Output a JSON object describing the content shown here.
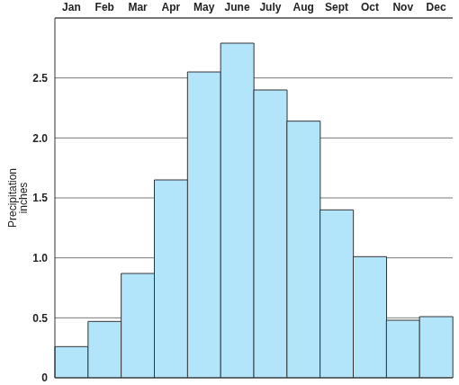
{
  "chart_data": {
    "type": "bar",
    "ylabel": "Precipitation inches",
    "categories": [
      "Jan",
      "Feb",
      "Mar",
      "Apr",
      "May",
      "June",
      "July",
      "Aug",
      "Sept",
      "Oct",
      "Nov",
      "Dec"
    ],
    "values": [
      0.26,
      0.47,
      0.87,
      1.65,
      2.55,
      2.79,
      2.4,
      2.14,
      1.4,
      1.01,
      0.48,
      0.51
    ],
    "color": "#b3e5fa",
    "ylim": [
      0,
      3
    ],
    "yticks": [
      0,
      0.5,
      {
        "value": 1,
        "label": "1.0"
      },
      1.5,
      {
        "value": 2,
        "label": "2.0"
      },
      2.5
    ],
    "grid": true
  }
}
